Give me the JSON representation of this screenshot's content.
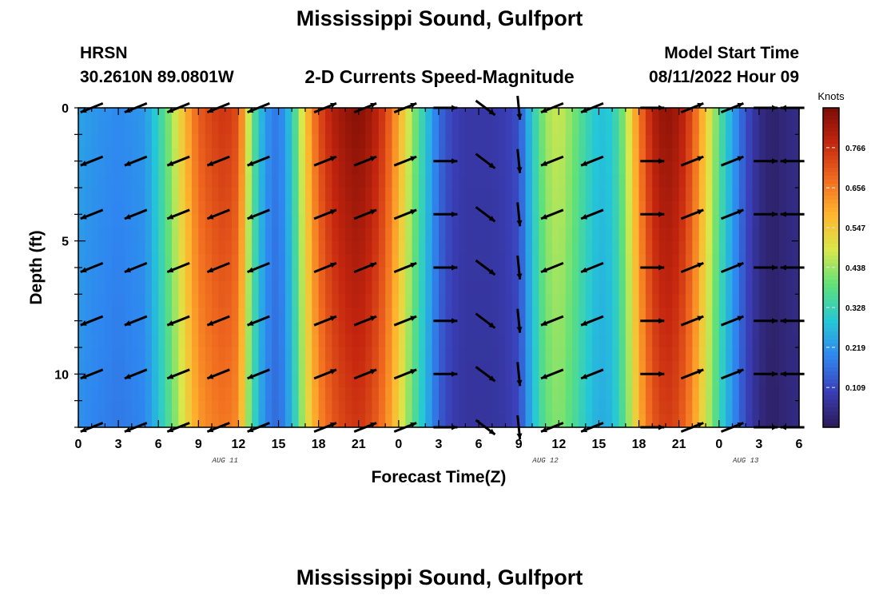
{
  "header": {
    "title": "Mississippi Sound, Gulfport",
    "station": "HRSN",
    "coords": "30.2610N  89.0801W",
    "subtitle": "2-D Currents Speed-Magnitude",
    "model_start_label": "Model Start Time",
    "model_start_value": "08/11/2022 Hour 09",
    "repeated_title": "Mississippi Sound, Gulfport"
  },
  "chart_data": {
    "type": "heatmap",
    "xlabel": "Forecast Time(Z)",
    "ylabel": "Depth (ft)",
    "x_tick_labels": [
      "0",
      "3",
      "6",
      "9",
      "12",
      "15",
      "18",
      "21",
      "0",
      "3",
      "6",
      "9",
      "12",
      "15",
      "18",
      "21",
      "0",
      "3",
      "6"
    ],
    "date_labels": [
      {
        "label": "AUG 11",
        "hour": 11
      },
      {
        "label": "AUG 12",
        "hour": 35
      },
      {
        "label": "AUG 13",
        "hour": 50
      }
    ],
    "x_range_hours": [
      0,
      54
    ],
    "y_ticks": [
      0,
      5,
      10
    ],
    "ylim": [
      0,
      12
    ],
    "y_inverted": true,
    "colorbar": {
      "unit": "Knots",
      "ticks": [
        "0.766",
        "0.656",
        "0.547",
        "0.438",
        "0.328",
        "0.219",
        "0.109"
      ],
      "tick_values": [
        0.766,
        0.656,
        0.547,
        0.438,
        0.328,
        0.219,
        0.109
      ],
      "range": [
        0.0,
        0.875
      ]
    },
    "speed_by_hour": [
      [
        0,
        0.24
      ],
      [
        1,
        0.22
      ],
      [
        3,
        0.2
      ],
      [
        5,
        0.22
      ],
      [
        6,
        0.32
      ],
      [
        7,
        0.44
      ],
      [
        8,
        0.58
      ],
      [
        9,
        0.7
      ],
      [
        10,
        0.74
      ],
      [
        11,
        0.76
      ],
      [
        12,
        0.72
      ],
      [
        13,
        0.4
      ],
      [
        14,
        0.22
      ],
      [
        15,
        0.17
      ],
      [
        16,
        0.3
      ],
      [
        17,
        0.55
      ],
      [
        18,
        0.72
      ],
      [
        19,
        0.8
      ],
      [
        20,
        0.84
      ],
      [
        21,
        0.86
      ],
      [
        22,
        0.82
      ],
      [
        23,
        0.74
      ],
      [
        24,
        0.6
      ],
      [
        25,
        0.44
      ],
      [
        26,
        0.3
      ],
      [
        27,
        0.16
      ],
      [
        28,
        0.1
      ],
      [
        29,
        0.08
      ],
      [
        30,
        0.08
      ],
      [
        31,
        0.08
      ],
      [
        32,
        0.09
      ],
      [
        33,
        0.12
      ],
      [
        34,
        0.3
      ],
      [
        35,
        0.44
      ],
      [
        36,
        0.48
      ],
      [
        37,
        0.42
      ],
      [
        38,
        0.34
      ],
      [
        39,
        0.28
      ],
      [
        40,
        0.3
      ],
      [
        41,
        0.44
      ],
      [
        42,
        0.66
      ],
      [
        43,
        0.8
      ],
      [
        44,
        0.85
      ],
      [
        45,
        0.82
      ],
      [
        46,
        0.72
      ],
      [
        47,
        0.55
      ],
      [
        48,
        0.38
      ],
      [
        49,
        0.24
      ],
      [
        50,
        0.12
      ],
      [
        51,
        0.05
      ],
      [
        52,
        0.02
      ],
      [
        53,
        0.04
      ],
      [
        54,
        0.05
      ]
    ],
    "arrow_rows_depth_ft": [
      0,
      2,
      4,
      6,
      8,
      10,
      12
    ],
    "arrow_columns": [
      {
        "hour": 1.0,
        "dir": "WSW"
      },
      {
        "hour": 4.3,
        "dir": "WSW"
      },
      {
        "hour": 7.5,
        "dir": "WSW"
      },
      {
        "hour": 10.5,
        "dir": "WSW"
      },
      {
        "hour": 13.5,
        "dir": "WSW"
      },
      {
        "hour": 18.5,
        "dir": "ENE"
      },
      {
        "hour": 21.5,
        "dir": "ENE"
      },
      {
        "hour": 24.5,
        "dir": "ENE"
      },
      {
        "hour": 27.5,
        "dir": "E"
      },
      {
        "hour": 30.5,
        "dir": "SE"
      },
      {
        "hour": 33.0,
        "dir": "S"
      },
      {
        "hour": 35.5,
        "dir": "WSW"
      },
      {
        "hour": 38.5,
        "dir": "WSW"
      },
      {
        "hour": 43.0,
        "dir": "E"
      },
      {
        "hour": 46.0,
        "dir": "ENE"
      },
      {
        "hour": 49.0,
        "dir": "ENE"
      },
      {
        "hour": 51.5,
        "dir": "E"
      },
      {
        "hour": 53.5,
        "dir": "W"
      }
    ]
  },
  "colors": {
    "scale": [
      "#2b1a55",
      "#3a3fb8",
      "#2f86f0",
      "#25c8d6",
      "#5fe07a",
      "#d9e84a",
      "#ffb52e",
      "#f06a1f",
      "#c5260f",
      "#7a0c05"
    ]
  }
}
